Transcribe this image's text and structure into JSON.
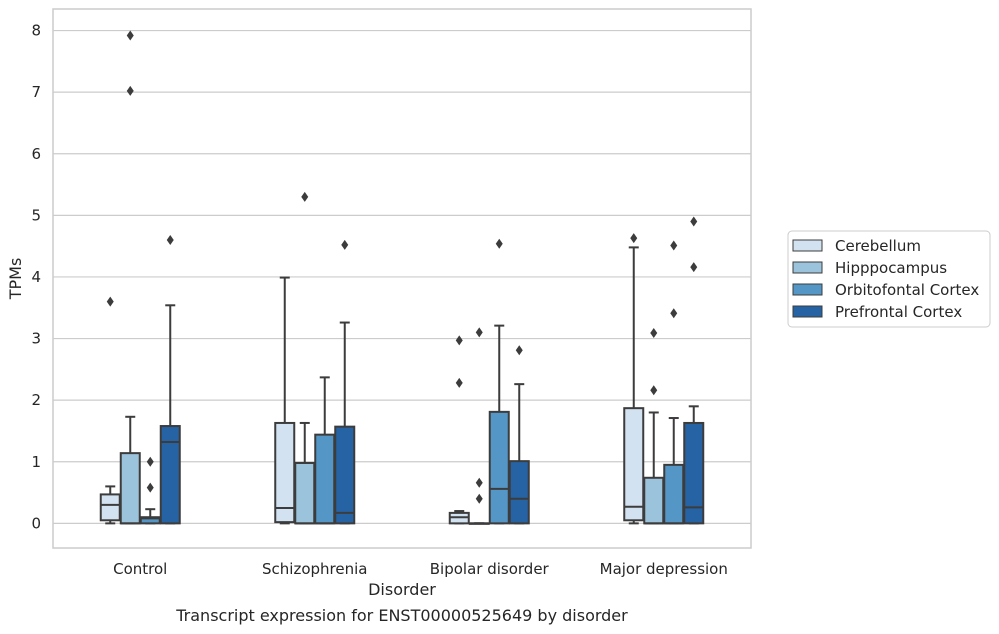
{
  "chart_data": {
    "type": "box",
    "title": "",
    "caption": "Transcript expression for ENST00000525649 by disorder",
    "xlabel": "Disorder",
    "ylabel": "TPMs",
    "ylim": [
      -0.4,
      8.35
    ],
    "yticks": [
      0,
      1,
      2,
      3,
      4,
      5,
      6,
      7,
      8
    ],
    "grid": "horizontal",
    "legend_position": "right",
    "categories": [
      "Control",
      "Schizophrenia",
      "Bipolar disorder",
      "Major depression"
    ],
    "series": [
      {
        "name": "Cerebellum",
        "color": "#d3e2f1",
        "boxes": [
          {
            "whisker_low": 0.0,
            "q1": 0.05,
            "median": 0.3,
            "q3": 0.47,
            "whisker_high": 0.6,
            "outliers": [
              3.6
            ]
          },
          {
            "whisker_low": 0.0,
            "q1": 0.02,
            "median": 0.25,
            "q3": 1.63,
            "whisker_high": 3.99,
            "outliers": []
          },
          {
            "whisker_low": 0.0,
            "q1": 0.0,
            "median": 0.1,
            "q3": 0.17,
            "whisker_high": 0.2,
            "outliers": [
              2.97,
              2.28
            ]
          },
          {
            "whisker_low": 0.0,
            "q1": 0.05,
            "median": 0.27,
            "q3": 1.87,
            "whisker_high": 4.48,
            "outliers": [
              4.63
            ]
          }
        ]
      },
      {
        "name": "Hipppocampus",
        "color": "#9cc3dc",
        "boxes": [
          {
            "whisker_low": 0.0,
            "q1": 0.0,
            "median": 0.0,
            "q3": 1.14,
            "whisker_high": 1.73,
            "outliers": [
              7.92,
              7.02
            ]
          },
          {
            "whisker_low": 0.0,
            "q1": 0.0,
            "median": 0.0,
            "q3": 0.98,
            "whisker_high": 1.63,
            "outliers": [
              5.3
            ]
          },
          {
            "whisker_low": 0.0,
            "q1": 0.0,
            "median": 0.0,
            "q3": 0.0,
            "whisker_high": 0.0,
            "outliers": [
              3.1,
              0.66,
              0.4
            ]
          },
          {
            "whisker_low": 0.0,
            "q1": 0.0,
            "median": 0.0,
            "q3": 0.74,
            "whisker_high": 1.8,
            "outliers": [
              3.09,
              2.16
            ]
          }
        ]
      },
      {
        "name": "Orbitofontal Cortex",
        "color": "#5497c6",
        "boxes": [
          {
            "whisker_low": 0.0,
            "q1": 0.0,
            "median": 0.08,
            "q3": 0.1,
            "whisker_high": 0.23,
            "outliers": [
              1.0,
              0.58
            ]
          },
          {
            "whisker_low": 0.0,
            "q1": 0.0,
            "median": 0.0,
            "q3": 1.44,
            "whisker_high": 2.37,
            "outliers": []
          },
          {
            "whisker_low": 0.0,
            "q1": 0.0,
            "median": 0.56,
            "q3": 1.81,
            "whisker_high": 3.21,
            "outliers": [
              4.54
            ]
          },
          {
            "whisker_low": 0.0,
            "q1": 0.0,
            "median": 0.0,
            "q3": 0.95,
            "whisker_high": 1.71,
            "outliers": [
              4.51,
              3.41
            ]
          }
        ]
      },
      {
        "name": "Prefrontal Cortex",
        "color": "#2563a4",
        "boxes": [
          {
            "whisker_low": 0.0,
            "q1": 0.0,
            "median": 1.32,
            "q3": 1.58,
            "whisker_high": 3.54,
            "outliers": [
              4.6
            ]
          },
          {
            "whisker_low": 0.0,
            "q1": 0.0,
            "median": 0.17,
            "q3": 1.57,
            "whisker_high": 3.26,
            "outliers": [
              4.52
            ]
          },
          {
            "whisker_low": 0.0,
            "q1": 0.0,
            "median": 0.4,
            "q3": 1.01,
            "whisker_high": 2.26,
            "outliers": [
              2.81
            ]
          },
          {
            "whisker_low": 0.0,
            "q1": 0.0,
            "median": 0.26,
            "q3": 1.63,
            "whisker_high": 1.9,
            "outliers": [
              4.9,
              4.16
            ]
          }
        ]
      }
    ]
  }
}
